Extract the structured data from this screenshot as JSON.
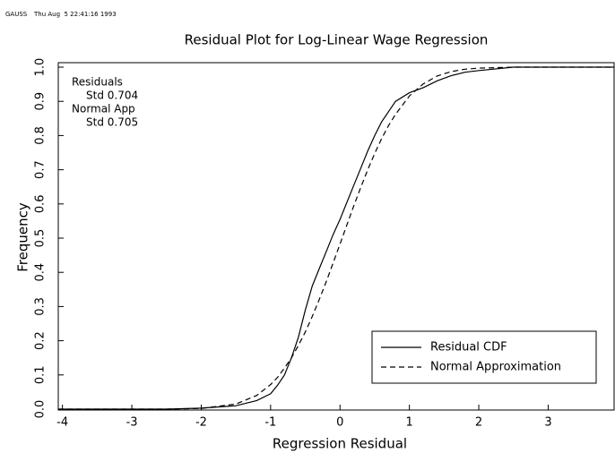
{
  "header": {
    "program": "GAUSS",
    "timestamp": "Thu Aug  5 22:41:16 1993"
  },
  "chart_data": {
    "type": "line",
    "title": "Residual Plot for Log-Linear Wage Regression",
    "x_label": "Regression Residual",
    "y_label": "Frequency",
    "annotations": [
      "Residuals",
      "Std 0.704",
      "Normal App",
      "Std 0.705"
    ],
    "x": [
      -4.06,
      -2.5,
      -2,
      -1.5,
      -1.2,
      -1,
      -0.9,
      -0.8,
      -0.7,
      -0.6,
      -0.5,
      -0.4,
      -0.3,
      -0.2,
      -0.1,
      0,
      0.1,
      0.2,
      0.3,
      0.4,
      0.5,
      0.6,
      0.7,
      0.8,
      1,
      1.2,
      1.4,
      1.6,
      1.8,
      2,
      2.5,
      3.95
    ],
    "series": [
      {
        "name": "Residual CDF",
        "color": "#000000",
        "dash": "solid",
        "values": [
          0,
          0,
          0.003,
          0.01,
          0.025,
          0.045,
          0.07,
          0.1,
          0.15,
          0.21,
          0.29,
          0.36,
          0.41,
          0.46,
          0.51,
          0.555,
          0.605,
          0.655,
          0.705,
          0.755,
          0.8,
          0.84,
          0.87,
          0.9,
          0.925,
          0.94,
          0.96,
          0.975,
          0.985,
          0.99,
          1,
          1
        ]
      },
      {
        "name": "Normal Approximation",
        "color": "#000000",
        "dash": "dashed",
        "values": [
          0,
          0,
          0.002,
          0.015,
          0.04,
          0.072,
          0.093,
          0.12,
          0.15,
          0.186,
          0.226,
          0.271,
          0.32,
          0.372,
          0.427,
          0.483,
          0.539,
          0.595,
          0.649,
          0.7,
          0.748,
          0.791,
          0.829,
          0.862,
          0.916,
          0.951,
          0.974,
          0.987,
          0.994,
          0.997,
          1,
          1
        ]
      }
    ],
    "xlim": [
      -4.06,
      3.95
    ],
    "xticks": [
      -4,
      -3,
      -2,
      -1,
      0,
      1,
      2,
      3
    ],
    "ylim": [
      0,
      1
    ],
    "yticks": [
      {
        "value": 0,
        "label": "0.0"
      },
      0.1,
      0.2,
      0.3,
      0.4,
      0.5,
      0.6,
      0.7,
      0.8,
      0.9,
      {
        "value": 1,
        "label": "1.0"
      }
    ],
    "legend": "lower right"
  }
}
